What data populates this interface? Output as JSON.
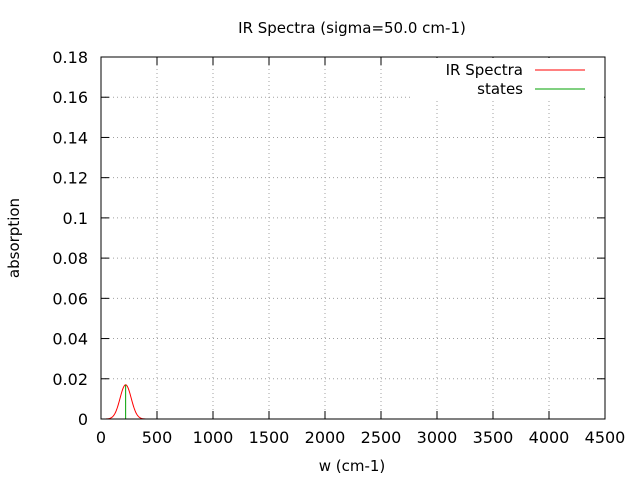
{
  "chart_data": {
    "type": "line",
    "title": "IR Spectra (sigma=50.0 cm-1)",
    "xlabel": "w (cm-1)",
    "ylabel": "absorption",
    "xlim": [
      0,
      4500
    ],
    "ylim": [
      0,
      0.18
    ],
    "x_ticks": [
      "0",
      "500",
      "1000",
      "1500",
      "2000",
      "2500",
      "3000",
      "3500",
      "4000",
      "4500"
    ],
    "y_ticks": [
      "0",
      "0.02",
      "0.04",
      "0.06",
      "0.08",
      "0.1",
      "0.12",
      "0.14",
      "0.16",
      "0.18"
    ],
    "grid": true,
    "legend_position": "top-right",
    "series": [
      {
        "name": "IR Spectra",
        "color": "#ff0000",
        "style": "gaussian-broadened line",
        "peaks": [
          {
            "center": 220,
            "height": 0.017,
            "sigma": 50.0
          }
        ]
      },
      {
        "name": "states",
        "color": "#00a000",
        "style": "sticks",
        "sticks": [
          {
            "x": 220,
            "y": 0.017
          }
        ]
      }
    ]
  }
}
